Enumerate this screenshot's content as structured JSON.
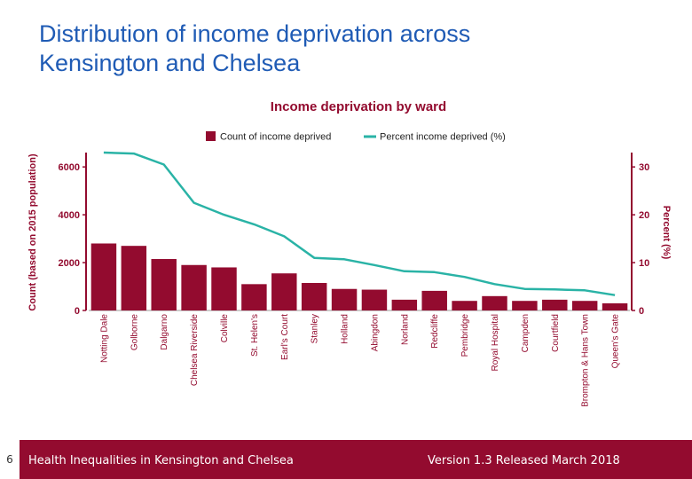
{
  "slide": {
    "title_line1": "Distribution of income deprivation across",
    "title_line2": "Kensington and Chelsea"
  },
  "footer": {
    "page_number": "6",
    "left_text": "Health Inequalities in Kensington and Chelsea",
    "right_text": "Version 1.3 Released March 2018"
  },
  "colors": {
    "title": "#1f5bb5",
    "bar": "#930b2f",
    "line": "#2ab3a6",
    "footer": "#930b2f"
  },
  "chart_data": {
    "type": "bar+line",
    "title": "Income deprivation by ward",
    "legend": {
      "bar_label": "Count of income deprived",
      "line_label": "Percent income deprived (%)",
      "position": "top-center"
    },
    "y_left_label": "Count (based on 2015 population)",
    "y_right_label": "Percent (%)",
    "y_left_ticks": [
      "0",
      "2000",
      "4000",
      "6000"
    ],
    "y_right_ticks": [
      "0",
      "10",
      "20",
      "30"
    ],
    "y_left_range": [
      0,
      6600
    ],
    "y_right_range": [
      0,
      33
    ],
    "categories": [
      "Notting Dale",
      "Golborne",
      "Dalgarno",
      "Chelsea Riverside",
      "Colville",
      "St. Helen's",
      "Earl's Court",
      "Stanley",
      "Holland",
      "Abingdon",
      "Norland",
      "Redcliffe",
      "Pembridge",
      "Royal Hospital",
      "Campden",
      "Courtfield",
      "Brompton & Hans Town",
      "Queen's Gate"
    ],
    "series": [
      {
        "name": "Count of income deprived",
        "axis": "left",
        "values": [
          2800,
          2700,
          2150,
          1900,
          1800,
          1100,
          1550,
          1150,
          900,
          870,
          450,
          820,
          400,
          600,
          400,
          450,
          400,
          300
        ]
      },
      {
        "name": "Percent income deprived (%)",
        "axis": "right",
        "values": [
          33,
          32.8,
          30.5,
          22.5,
          20,
          18,
          15.5,
          11,
          10.7,
          9.5,
          8.2,
          8,
          7,
          5.5,
          4.5,
          4.4,
          4.2,
          3.2
        ]
      }
    ]
  }
}
